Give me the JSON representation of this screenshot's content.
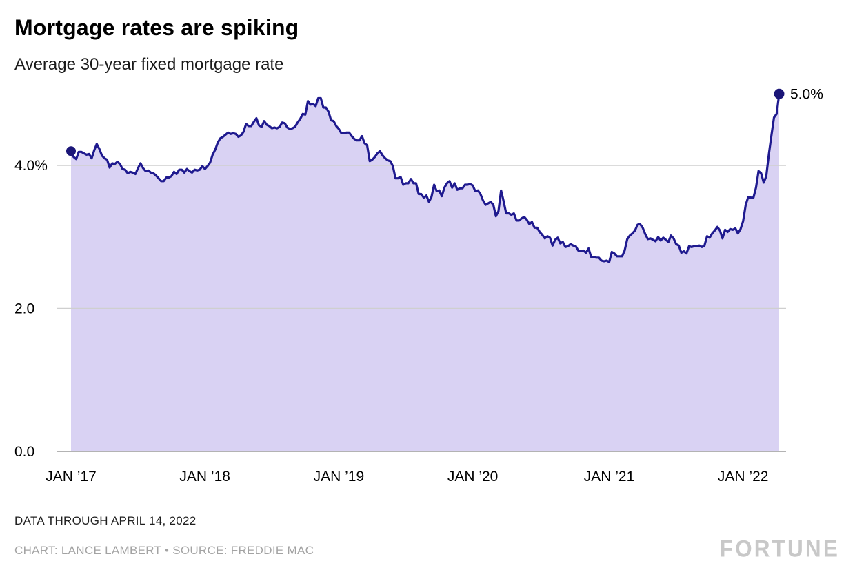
{
  "header": {
    "title": "Mortgage rates are spiking",
    "subtitle": "Average 30-year fixed mortgage rate"
  },
  "footer": {
    "note": "DATA THROUGH APRIL 14, 2022",
    "credits": "CHART: LANCE LAMBERT • SOURCE: FREDDIE MAC",
    "logo": "FORTUNE"
  },
  "colors": {
    "line": "#1f1a8f",
    "area": "#d9d2f3",
    "dot": "#1b1678",
    "grid": "#cfcfcf",
    "baseline": "#9a9a9a",
    "axis_text": "#000000"
  },
  "chart_data": {
    "type": "area",
    "title": "Mortgage rates are spiking",
    "subtitle": "Average 30-year fixed mortgage rate",
    "unit": "percent",
    "cadence": "weekly",
    "ylim": [
      0,
      5.3
    ],
    "grid": true,
    "end_label": "5.0%",
    "y_ticks": [
      {
        "value": 0,
        "label": "0.0"
      },
      {
        "value": 2,
        "label": "2.0"
      },
      {
        "value": 4,
        "label": "4.0%"
      }
    ],
    "x_ticks": [
      {
        "index": 0,
        "label": "JAN ’17"
      },
      {
        "index": 52,
        "label": "JAN ’18"
      },
      {
        "index": 104,
        "label": "JAN ’19"
      },
      {
        "index": 156,
        "label": "JAN ’20"
      },
      {
        "index": 209,
        "label": "JAN ’21"
      },
      {
        "index": 261,
        "label": "JAN ’22"
      }
    ],
    "series": [
      {
        "name": "Average 30-year fixed mortgage rate",
        "values": [
          4.2,
          4.12,
          4.09,
          4.19,
          4.19,
          4.17,
          4.15,
          4.16,
          4.1,
          4.21,
          4.3,
          4.23,
          4.14,
          4.1,
          4.08,
          3.97,
          4.03,
          4.02,
          4.05,
          4.02,
          3.95,
          3.94,
          3.89,
          3.91,
          3.9,
          3.88,
          3.96,
          4.03,
          3.96,
          3.92,
          3.93,
          3.9,
          3.89,
          3.86,
          3.82,
          3.78,
          3.78,
          3.83,
          3.83,
          3.85,
          3.91,
          3.88,
          3.94,
          3.94,
          3.9,
          3.95,
          3.92,
          3.9,
          3.94,
          3.93,
          3.94,
          3.99,
          3.95,
          3.99,
          4.04,
          4.15,
          4.22,
          4.32,
          4.38,
          4.4,
          4.43,
          4.46,
          4.44,
          4.45,
          4.44,
          4.4,
          4.42,
          4.47,
          4.58,
          4.55,
          4.55,
          4.61,
          4.66,
          4.56,
          4.54,
          4.62,
          4.57,
          4.55,
          4.52,
          4.53,
          4.52,
          4.54,
          4.6,
          4.59,
          4.53,
          4.51,
          4.52,
          4.54,
          4.6,
          4.65,
          4.72,
          4.71,
          4.9,
          4.85,
          4.86,
          4.83,
          4.94,
          4.94,
          4.81,
          4.81,
          4.75,
          4.63,
          4.62,
          4.55,
          4.51,
          4.45,
          4.45,
          4.46,
          4.46,
          4.41,
          4.37,
          4.35,
          4.35,
          4.41,
          4.31,
          4.28,
          4.06,
          4.08,
          4.12,
          4.17,
          4.2,
          4.14,
          4.1,
          4.07,
          4.06,
          3.99,
          3.82,
          3.82,
          3.84,
          3.73,
          3.75,
          3.75,
          3.81,
          3.75,
          3.75,
          3.6,
          3.6,
          3.55,
          3.58,
          3.49,
          3.56,
          3.73,
          3.64,
          3.65,
          3.57,
          3.69,
          3.75,
          3.78,
          3.69,
          3.75,
          3.66,
          3.68,
          3.68,
          3.73,
          3.73,
          3.74,
          3.72,
          3.64,
          3.65,
          3.6,
          3.51,
          3.45,
          3.47,
          3.49,
          3.45,
          3.29,
          3.36,
          3.65,
          3.5,
          3.33,
          3.33,
          3.31,
          3.33,
          3.23,
          3.23,
          3.26,
          3.28,
          3.24,
          3.18,
          3.21,
          3.13,
          3.13,
          3.07,
          3.03,
          2.98,
          3.01,
          2.99,
          2.88,
          2.96,
          2.99,
          2.91,
          2.93,
          2.86,
          2.87,
          2.9,
          2.88,
          2.87,
          2.81,
          2.8,
          2.81,
          2.78,
          2.84,
          2.72,
          2.72,
          2.71,
          2.71,
          2.67,
          2.66,
          2.67,
          2.65,
          2.79,
          2.77,
          2.73,
          2.73,
          2.73,
          2.81,
          2.97,
          3.02,
          3.05,
          3.09,
          3.17,
          3.18,
          3.13,
          3.04,
          2.97,
          2.98,
          2.96,
          2.94,
          3.0,
          2.95,
          2.99,
          2.96,
          2.93,
          3.02,
          2.98,
          2.9,
          2.88,
          2.78,
          2.8,
          2.77,
          2.87,
          2.86,
          2.87,
          2.87,
          2.88,
          2.86,
          2.88,
          3.01,
          2.99,
          3.05,
          3.09,
          3.14,
          3.09,
          2.98,
          3.1,
          3.07,
          3.11,
          3.1,
          3.12,
          3.05,
          3.11,
          3.22,
          3.45,
          3.56,
          3.55,
          3.55,
          3.69,
          3.92,
          3.89,
          3.76,
          3.85,
          4.16,
          4.42,
          4.67,
          4.72,
          5.0
        ]
      }
    ]
  }
}
